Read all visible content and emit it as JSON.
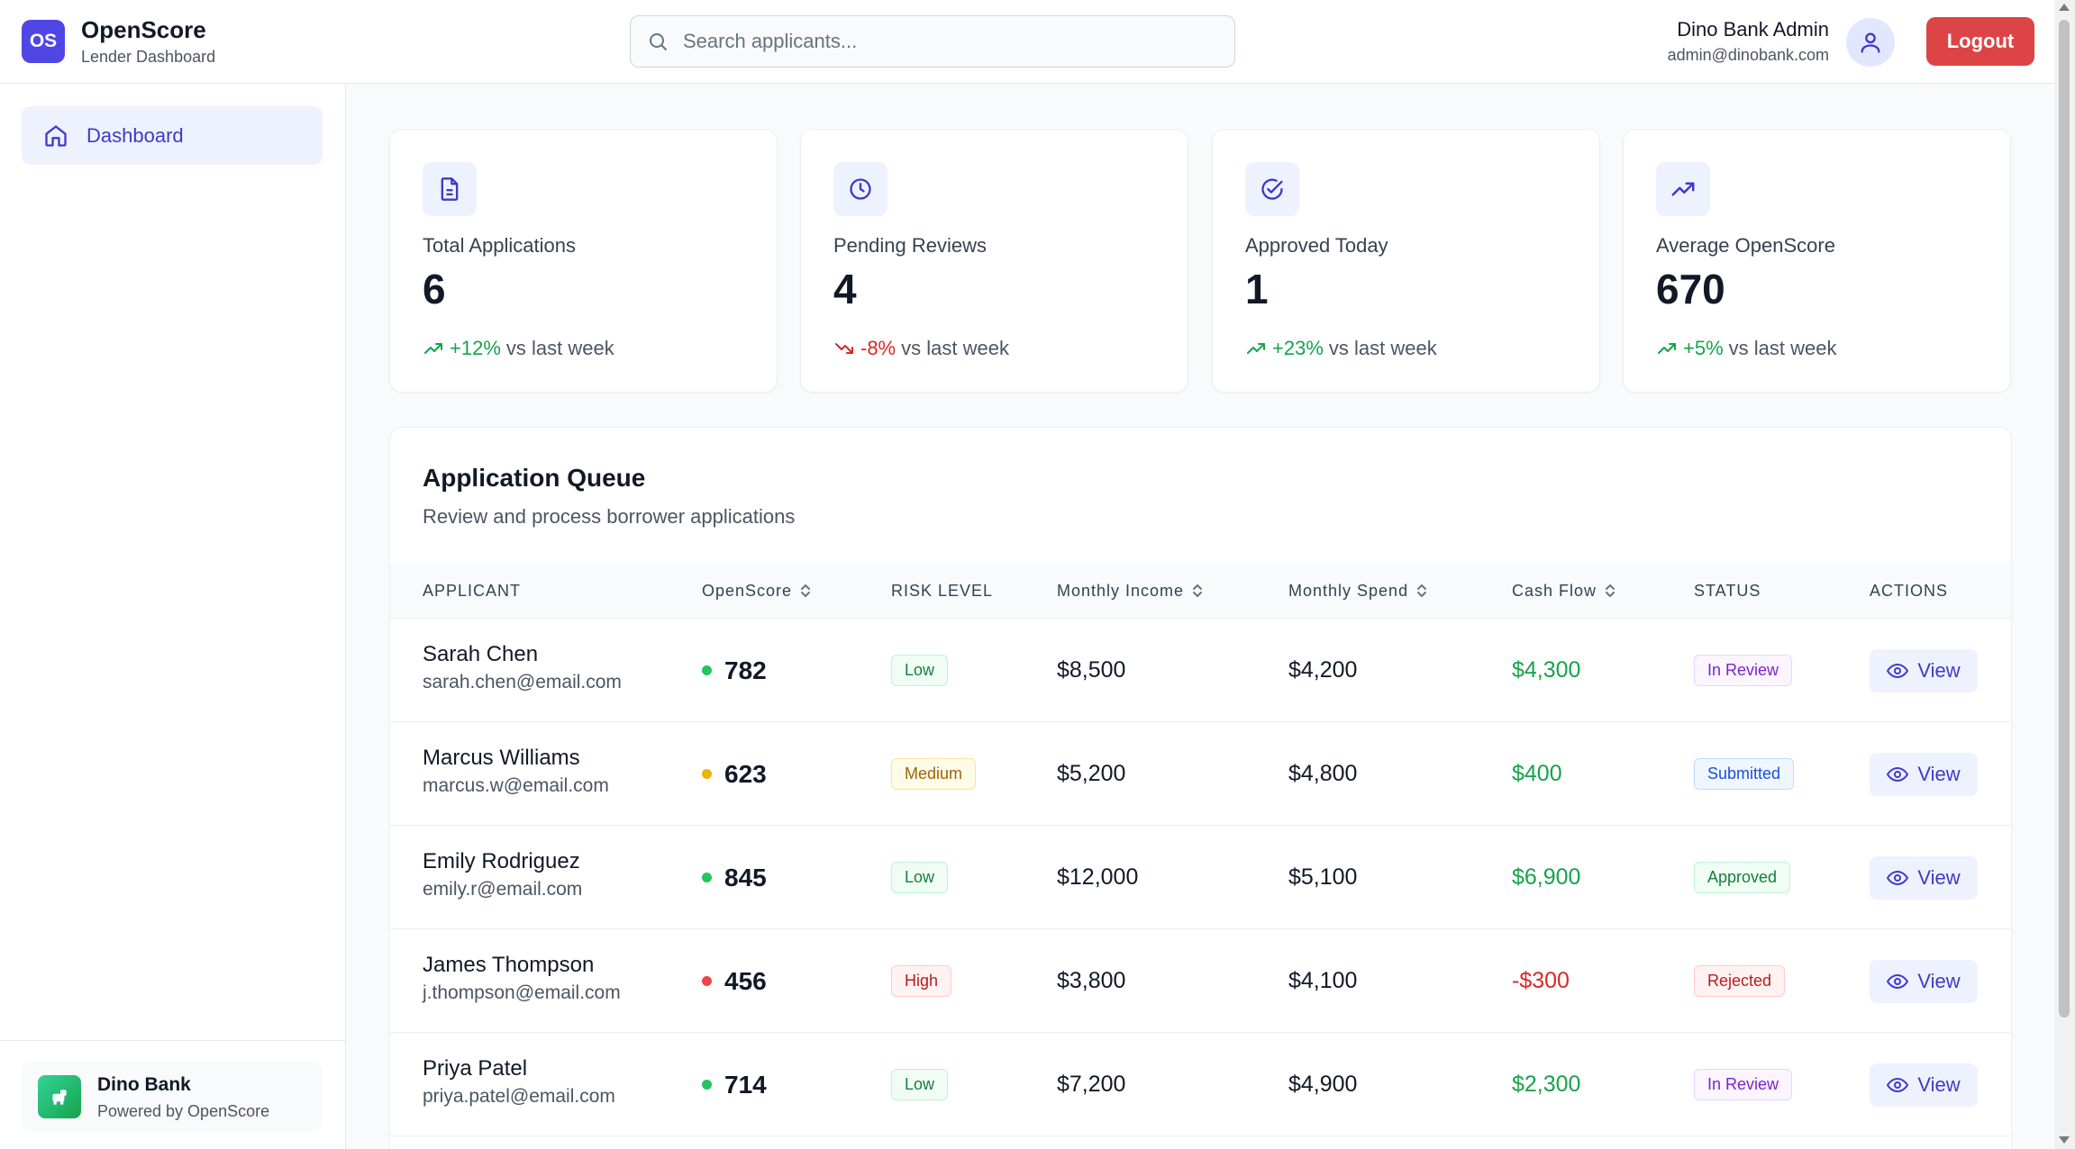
{
  "header": {
    "logo_text": "OS",
    "app_title": "OpenScore",
    "app_subtitle": "Lender Dashboard",
    "search_placeholder": "Search applicants...",
    "user_name": "Dino Bank Admin",
    "user_email": "admin@dinobank.com",
    "logout_label": "Logout"
  },
  "sidebar": {
    "items": [
      {
        "label": "Dashboard",
        "icon": "home-icon",
        "active": true
      }
    ],
    "org": {
      "name": "Dino Bank",
      "powered_by": "Powered by OpenScore"
    }
  },
  "stats": [
    {
      "icon": "document-icon",
      "label": "Total Applications",
      "value": "6",
      "trend": "+12%",
      "direction": "up",
      "suffix": "vs last week"
    },
    {
      "icon": "clock-icon",
      "label": "Pending Reviews",
      "value": "4",
      "trend": "-8%",
      "direction": "down",
      "suffix": "vs last week"
    },
    {
      "icon": "check-circle-icon",
      "label": "Approved Today",
      "value": "1",
      "trend": "+23%",
      "direction": "up",
      "suffix": "vs last week"
    },
    {
      "icon": "trending-up-icon",
      "label": "Average OpenScore",
      "value": "670",
      "trend": "+5%",
      "direction": "up",
      "suffix": "vs last week"
    }
  ],
  "queue": {
    "title": "Application Queue",
    "subtitle": "Review and process borrower applications",
    "columns": {
      "applicant": "APPLICANT",
      "openscore": "OpenScore",
      "risk": "RISK LEVEL",
      "income": "Monthly Income",
      "spend": "Monthly Spend",
      "cashflow": "Cash Flow",
      "status": "STATUS",
      "actions": "ACTIONS"
    },
    "view_label": "View",
    "rows": [
      {
        "name": "Sarah Chen",
        "email": "sarah.chen@email.com",
        "score": "782",
        "score_color": "#22c55e",
        "risk": "Low",
        "risk_class": "risk-low",
        "income": "$8,500",
        "spend": "$4,200",
        "cashflow": "$4,300",
        "cash_class": "cash-pos",
        "status": "In Review",
        "status_class": "st-review"
      },
      {
        "name": "Marcus Williams",
        "email": "marcus.w@email.com",
        "score": "623",
        "score_color": "#eab308",
        "risk": "Medium",
        "risk_class": "risk-medium",
        "income": "$5,200",
        "spend": "$4,800",
        "cashflow": "$400",
        "cash_class": "cash-pos",
        "status": "Submitted",
        "status_class": "st-submitted"
      },
      {
        "name": "Emily Rodriguez",
        "email": "emily.r@email.com",
        "score": "845",
        "score_color": "#22c55e",
        "risk": "Low",
        "risk_class": "risk-low",
        "income": "$12,000",
        "spend": "$5,100",
        "cashflow": "$6,900",
        "cash_class": "cash-pos",
        "status": "Approved",
        "status_class": "st-approved"
      },
      {
        "name": "James Thompson",
        "email": "j.thompson@email.com",
        "score": "456",
        "score_color": "#ef4444",
        "risk": "High",
        "risk_class": "risk-high",
        "income": "$3,800",
        "spend": "$4,100",
        "cashflow": "-$300",
        "cash_class": "cash-neg",
        "status": "Rejected",
        "status_class": "st-rejected"
      },
      {
        "name": "Priya Patel",
        "email": "priya.patel@email.com",
        "score": "714",
        "score_color": "#22c55e",
        "risk": "Low",
        "risk_class": "risk-low",
        "income": "$7,200",
        "spend": "$4,900",
        "cashflow": "$2,300",
        "cash_class": "cash-pos",
        "status": "In Review",
        "status_class": "st-review"
      }
    ]
  }
}
